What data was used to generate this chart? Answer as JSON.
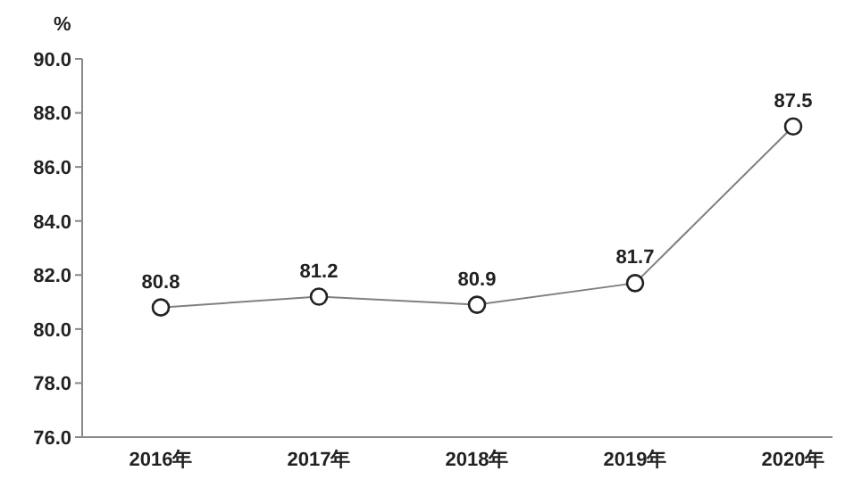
{
  "chart_data": {
    "type": "line",
    "ylabel": "%",
    "categories": [
      "2016年",
      "2017年",
      "2018年",
      "2019年",
      "2020年"
    ],
    "series": [
      {
        "color": "#808080",
        "values": [
          80.8,
          81.2,
          80.9,
          81.7,
          87.5
        ]
      }
    ],
    "ylim": [
      76,
      90
    ],
    "yticks": [
      {
        "value": 76,
        "label": "76.0"
      },
      {
        "value": 78,
        "label": "78.0"
      },
      {
        "value": 80,
        "label": "80.0"
      },
      {
        "value": 82,
        "label": "82.0"
      },
      {
        "value": 84,
        "label": "84.0"
      },
      {
        "value": 86,
        "label": "86.0"
      },
      {
        "value": 88,
        "label": "88.0"
      },
      {
        "value": 90,
        "label": "90.0"
      }
    ],
    "marker": "circle",
    "data_labels": true,
    "grid": false,
    "legend": false
  }
}
